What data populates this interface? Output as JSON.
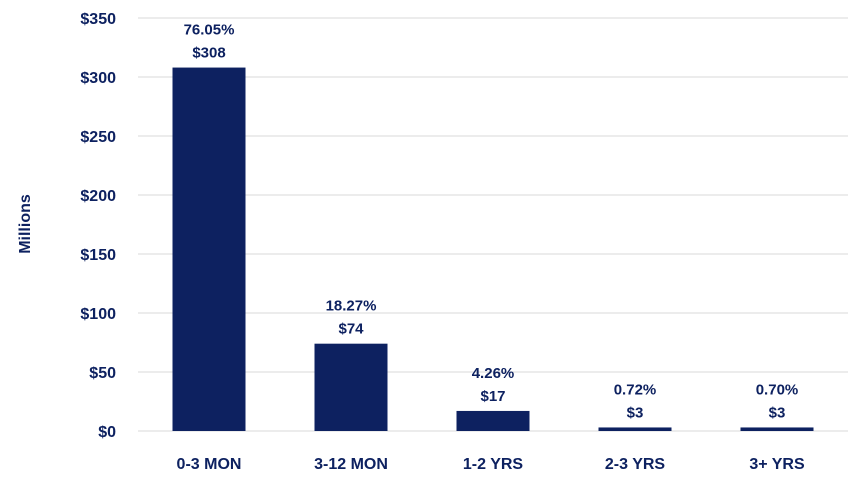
{
  "chart_data": {
    "type": "bar",
    "categories": [
      "0-3 MON",
      "3-12 MON",
      "1-2 YRS",
      "2-3 YRS",
      "3+ YRS"
    ],
    "values": [
      308,
      74,
      17,
      3,
      3
    ],
    "percent_labels": [
      "76.05%",
      "18.27%",
      "4.26%",
      "0.72%",
      "0.70%"
    ],
    "value_labels": [
      "$308",
      "$74",
      "$17",
      "$3",
      "$3"
    ],
    "ylabel": "Millions",
    "ylim": [
      0,
      350
    ],
    "yticks": [
      0,
      50,
      100,
      150,
      200,
      250,
      300,
      350
    ],
    "ytick_labels": [
      "$0",
      "$50",
      "$100",
      "$150",
      "$200",
      "$250",
      "$300",
      "$350"
    ],
    "grid": true,
    "legend": "none"
  },
  "colors": {
    "bar": "#0d2160",
    "text": "#0d2160",
    "grid": "#d9d9d9"
  }
}
